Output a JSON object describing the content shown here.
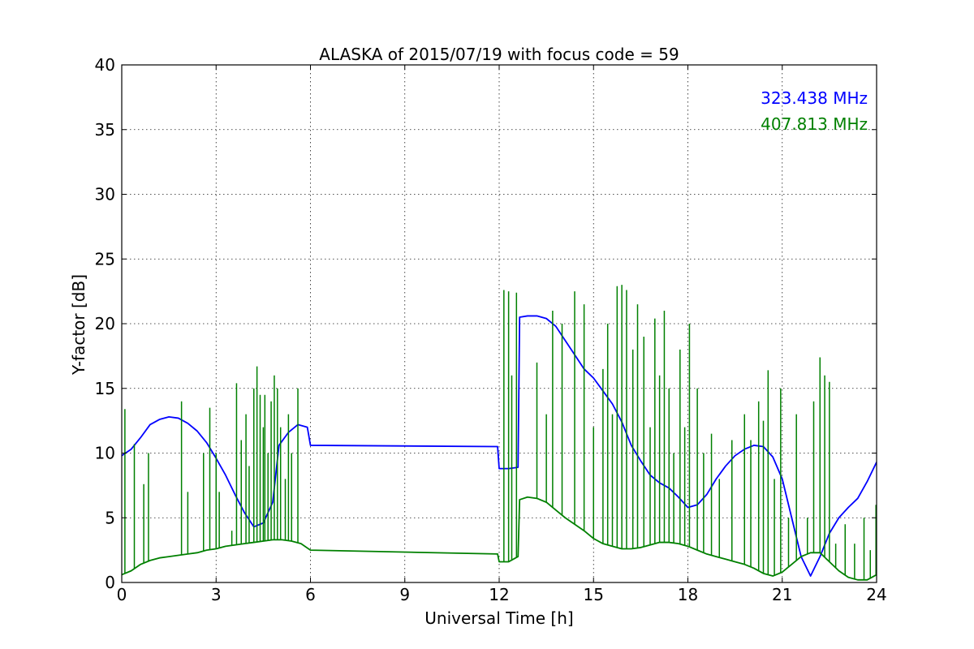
{
  "chart_data": {
    "type": "line",
    "title": "ALASKA of 2015/07/19 with focus code = 59",
    "xlabel": "Universal Time [h]",
    "ylabel": "Y-factor [dB]",
    "xlim": [
      0,
      24
    ],
    "ylim": [
      0,
      40
    ],
    "xticks": [
      0,
      3,
      6,
      9,
      12,
      15,
      18,
      21,
      24
    ],
    "yticks": [
      0,
      5,
      10,
      15,
      20,
      25,
      30,
      35,
      40
    ],
    "xtick_labels": [
      "0",
      "3",
      "6",
      "9",
      "12",
      "15",
      "18",
      "21",
      "24"
    ],
    "ytick_labels": [
      "0",
      "5",
      "10",
      "15",
      "20",
      "25",
      "30",
      "35",
      "40"
    ],
    "grid": true,
    "legend_position": "top-right",
    "series": [
      {
        "name": "323.438 MHz",
        "color": "#0000ff",
        "x": [
          0,
          0.3,
          0.6,
          0.9,
          1.2,
          1.5,
          1.8,
          2.1,
          2.4,
          2.7,
          3.0,
          3.3,
          3.6,
          3.9,
          4.2,
          4.5,
          4.8,
          5.0,
          5.3,
          5.6,
          5.9,
          6.0,
          11.95,
          12.0,
          12.3,
          12.6,
          12.65,
          12.9,
          13.2,
          13.5,
          13.8,
          14.1,
          14.4,
          14.7,
          15.0,
          15.3,
          15.6,
          15.9,
          16.2,
          16.5,
          16.8,
          17.1,
          17.4,
          17.7,
          18.0,
          18.3,
          18.6,
          18.9,
          19.2,
          19.5,
          19.8,
          20.1,
          20.4,
          20.7,
          21.0,
          21.3,
          21.6,
          21.9,
          22.2,
          22.5,
          22.8,
          23.1,
          23.4,
          23.7,
          24.0
        ],
        "y": [
          9.8,
          10.3,
          11.2,
          12.2,
          12.6,
          12.8,
          12.7,
          12.3,
          11.7,
          10.8,
          9.6,
          8.3,
          6.8,
          5.4,
          4.3,
          4.6,
          6.2,
          10.6,
          11.6,
          12.2,
          12.0,
          10.6,
          10.5,
          8.8,
          8.8,
          8.9,
          20.5,
          20.6,
          20.6,
          20.4,
          19.8,
          18.7,
          17.6,
          16.5,
          15.8,
          14.8,
          13.8,
          12.4,
          10.6,
          9.4,
          8.3,
          7.7,
          7.3,
          6.6,
          5.8,
          6.0,
          6.8,
          8.0,
          9.0,
          9.8,
          10.3,
          10.6,
          10.5,
          9.7,
          8.0,
          5.0,
          2.0,
          0.5,
          2.0,
          3.8,
          5.0,
          5.8,
          6.5,
          7.8,
          9.3
        ]
      },
      {
        "name": "407.813 MHz",
        "color": "#008000",
        "x": [
          0,
          0.3,
          0.6,
          0.9,
          1.2,
          1.5,
          1.8,
          2.1,
          2.4,
          2.7,
          3.0,
          3.3,
          3.6,
          3.9,
          4.2,
          4.5,
          4.8,
          5.1,
          5.4,
          5.7,
          6.0,
          11.95,
          12.0,
          12.3,
          12.6,
          12.65,
          12.9,
          13.2,
          13.5,
          13.8,
          14.1,
          14.4,
          14.7,
          15.0,
          15.3,
          15.6,
          15.9,
          16.2,
          16.5,
          16.8,
          17.1,
          17.4,
          17.7,
          18.0,
          18.3,
          18.6,
          18.9,
          19.2,
          19.5,
          19.8,
          20.1,
          20.4,
          20.7,
          21.0,
          21.3,
          21.6,
          21.9,
          22.2,
          22.5,
          22.8,
          23.1,
          23.4,
          23.7,
          24.0
        ],
        "y": [
          0.6,
          0.9,
          1.4,
          1.7,
          1.9,
          2.0,
          2.1,
          2.2,
          2.3,
          2.5,
          2.6,
          2.8,
          2.9,
          3.0,
          3.1,
          3.2,
          3.3,
          3.3,
          3.2,
          3.0,
          2.5,
          2.2,
          1.6,
          1.6,
          2.0,
          6.4,
          6.6,
          6.5,
          6.2,
          5.6,
          5.0,
          4.5,
          4.0,
          3.4,
          3.0,
          2.8,
          2.6,
          2.6,
          2.7,
          2.9,
          3.1,
          3.1,
          3.0,
          2.8,
          2.5,
          2.2,
          2.0,
          1.8,
          1.6,
          1.4,
          1.1,
          0.7,
          0.5,
          0.8,
          1.4,
          2.0,
          2.3,
          2.3,
          1.6,
          0.9,
          0.4,
          0.2,
          0.2,
          0.6
        ],
        "spikes": [
          {
            "x": 0.1,
            "y": 13.4
          },
          {
            "x": 0.4,
            "y": 10.7
          },
          {
            "x": 0.7,
            "y": 7.6
          },
          {
            "x": 0.85,
            "y": 10.0
          },
          {
            "x": 1.9,
            "y": 14.0
          },
          {
            "x": 2.1,
            "y": 7.0
          },
          {
            "x": 2.6,
            "y": 10.0
          },
          {
            "x": 2.8,
            "y": 13.5
          },
          {
            "x": 3.0,
            "y": 10.0
          },
          {
            "x": 3.1,
            "y": 7.0
          },
          {
            "x": 3.5,
            "y": 4.0
          },
          {
            "x": 3.65,
            "y": 15.4
          },
          {
            "x": 3.8,
            "y": 11.0
          },
          {
            "x": 3.95,
            "y": 13.0
          },
          {
            "x": 4.05,
            "y": 9.0
          },
          {
            "x": 4.2,
            "y": 15.0
          },
          {
            "x": 4.3,
            "y": 16.7
          },
          {
            "x": 4.4,
            "y": 14.5
          },
          {
            "x": 4.5,
            "y": 12.0
          },
          {
            "x": 4.55,
            "y": 14.5
          },
          {
            "x": 4.65,
            "y": 10.0
          },
          {
            "x": 4.75,
            "y": 14.0
          },
          {
            "x": 4.85,
            "y": 16.0
          },
          {
            "x": 4.95,
            "y": 15.0
          },
          {
            "x": 5.05,
            "y": 12.0
          },
          {
            "x": 5.2,
            "y": 8.0
          },
          {
            "x": 5.3,
            "y": 13.0
          },
          {
            "x": 5.4,
            "y": 10.0
          },
          {
            "x": 5.6,
            "y": 15.0
          },
          {
            "x": 12.15,
            "y": 22.6
          },
          {
            "x": 12.3,
            "y": 22.5
          },
          {
            "x": 12.4,
            "y": 16.0
          },
          {
            "x": 12.55,
            "y": 22.4
          },
          {
            "x": 13.2,
            "y": 17.0
          },
          {
            "x": 13.5,
            "y": 13.0
          },
          {
            "x": 13.7,
            "y": 21.0
          },
          {
            "x": 14.0,
            "y": 20.0
          },
          {
            "x": 14.4,
            "y": 22.5
          },
          {
            "x": 14.7,
            "y": 21.5
          },
          {
            "x": 15.0,
            "y": 12.0
          },
          {
            "x": 15.3,
            "y": 16.5
          },
          {
            "x": 15.45,
            "y": 20.0
          },
          {
            "x": 15.6,
            "y": 13.0
          },
          {
            "x": 15.75,
            "y": 22.9
          },
          {
            "x": 15.9,
            "y": 23.0
          },
          {
            "x": 16.05,
            "y": 22.6
          },
          {
            "x": 16.25,
            "y": 18.0
          },
          {
            "x": 16.4,
            "y": 21.5
          },
          {
            "x": 16.6,
            "y": 19.0
          },
          {
            "x": 16.8,
            "y": 12.0
          },
          {
            "x": 16.95,
            "y": 20.4
          },
          {
            "x": 17.1,
            "y": 16.0
          },
          {
            "x": 17.25,
            "y": 21.0
          },
          {
            "x": 17.4,
            "y": 15.0
          },
          {
            "x": 17.55,
            "y": 10.0
          },
          {
            "x": 17.75,
            "y": 18.0
          },
          {
            "x": 17.9,
            "y": 12.0
          },
          {
            "x": 18.05,
            "y": 20.0
          },
          {
            "x": 18.3,
            "y": 15.0
          },
          {
            "x": 18.5,
            "y": 10.0
          },
          {
            "x": 18.75,
            "y": 11.5
          },
          {
            "x": 19.0,
            "y": 8.0
          },
          {
            "x": 19.4,
            "y": 11.0
          },
          {
            "x": 19.8,
            "y": 13.0
          },
          {
            "x": 20.0,
            "y": 11.0
          },
          {
            "x": 20.25,
            "y": 14.0
          },
          {
            "x": 20.4,
            "y": 12.5
          },
          {
            "x": 20.55,
            "y": 16.4
          },
          {
            "x": 20.75,
            "y": 8.0
          },
          {
            "x": 20.95,
            "y": 15.0
          },
          {
            "x": 21.2,
            "y": 5.0
          },
          {
            "x": 21.45,
            "y": 13.0
          },
          {
            "x": 21.8,
            "y": 5.0
          },
          {
            "x": 22.0,
            "y": 14.0
          },
          {
            "x": 22.2,
            "y": 17.4
          },
          {
            "x": 22.35,
            "y": 16.0
          },
          {
            "x": 22.5,
            "y": 15.5
          },
          {
            "x": 22.7,
            "y": 3.0
          },
          {
            "x": 23.0,
            "y": 4.5
          },
          {
            "x": 23.3,
            "y": 3.0
          },
          {
            "x": 23.6,
            "y": 5.0
          },
          {
            "x": 23.8,
            "y": 2.5
          },
          {
            "x": 23.98,
            "y": 6.0
          }
        ]
      }
    ]
  }
}
